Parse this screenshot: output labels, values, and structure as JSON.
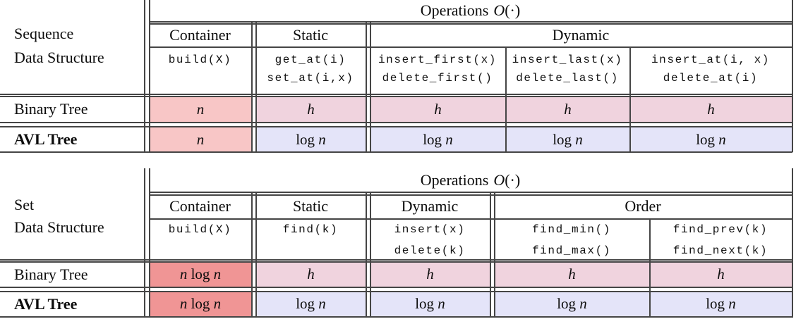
{
  "colors": {
    "n_bg": "#f8c6c6",
    "nlogn_bg": "#f09595",
    "h_bg": "#f0d3de",
    "logn_bg": "#e4e4f9"
  },
  "ops_title": {
    "prefix": "Operations",
    "o": "O",
    "args": "(·)"
  },
  "table1": {
    "label1": "Sequence",
    "label2": "Data Structure",
    "groups": [
      "Container",
      "Static",
      "Dynamic"
    ],
    "ops": [
      [
        "build(X)",
        ""
      ],
      [
        "get_at(i)",
        "set_at(i,x)"
      ],
      [
        "insert_first(x)",
        "delete_first()"
      ],
      [
        "insert_last(x)",
        "delete_last()"
      ],
      [
        "insert_at(i, x)",
        "delete_at(i)"
      ]
    ],
    "rows": [
      {
        "label": "Binary Tree",
        "cells": [
          {
            "text": "n",
            "bg": "n_bg"
          },
          {
            "text": "h",
            "bg": "h_bg"
          },
          {
            "text": "h",
            "bg": "h_bg"
          },
          {
            "text": "h",
            "bg": "h_bg"
          },
          {
            "text": "h",
            "bg": "h_bg"
          }
        ]
      },
      {
        "label": "AVL Tree",
        "cells": [
          {
            "text": "n",
            "bg": "n_bg"
          },
          {
            "text": "log n",
            "bg": "logn_bg"
          },
          {
            "text": "log n",
            "bg": "logn_bg"
          },
          {
            "text": "log n",
            "bg": "logn_bg"
          },
          {
            "text": "log n",
            "bg": "logn_bg"
          }
        ]
      }
    ]
  },
  "table2": {
    "label1": "Set",
    "label2": "Data Structure",
    "groups": [
      "Container",
      "Static",
      "Dynamic",
      "Order"
    ],
    "ops": [
      [
        "build(X)",
        ""
      ],
      [
        "find(k)",
        ""
      ],
      [
        "insert(x)",
        "delete(k)"
      ],
      [
        "find_min()",
        "find_max()"
      ],
      [
        "find_prev(k)",
        "find_next(k)"
      ]
    ],
    "rows": [
      {
        "label": "Binary Tree",
        "cells": [
          {
            "text": "n log n",
            "bg": "nlogn_bg"
          },
          {
            "text": "h",
            "bg": "h_bg"
          },
          {
            "text": "h",
            "bg": "h_bg"
          },
          {
            "text": "h",
            "bg": "h_bg"
          },
          {
            "text": "h",
            "bg": "h_bg"
          }
        ]
      },
      {
        "label": "AVL Tree",
        "cells": [
          {
            "text": "n log n",
            "bg": "nlogn_bg"
          },
          {
            "text": "log n",
            "bg": "logn_bg"
          },
          {
            "text": "log n",
            "bg": "logn_bg"
          },
          {
            "text": "log n",
            "bg": "logn_bg"
          },
          {
            "text": "log n",
            "bg": "logn_bg"
          }
        ]
      }
    ]
  }
}
